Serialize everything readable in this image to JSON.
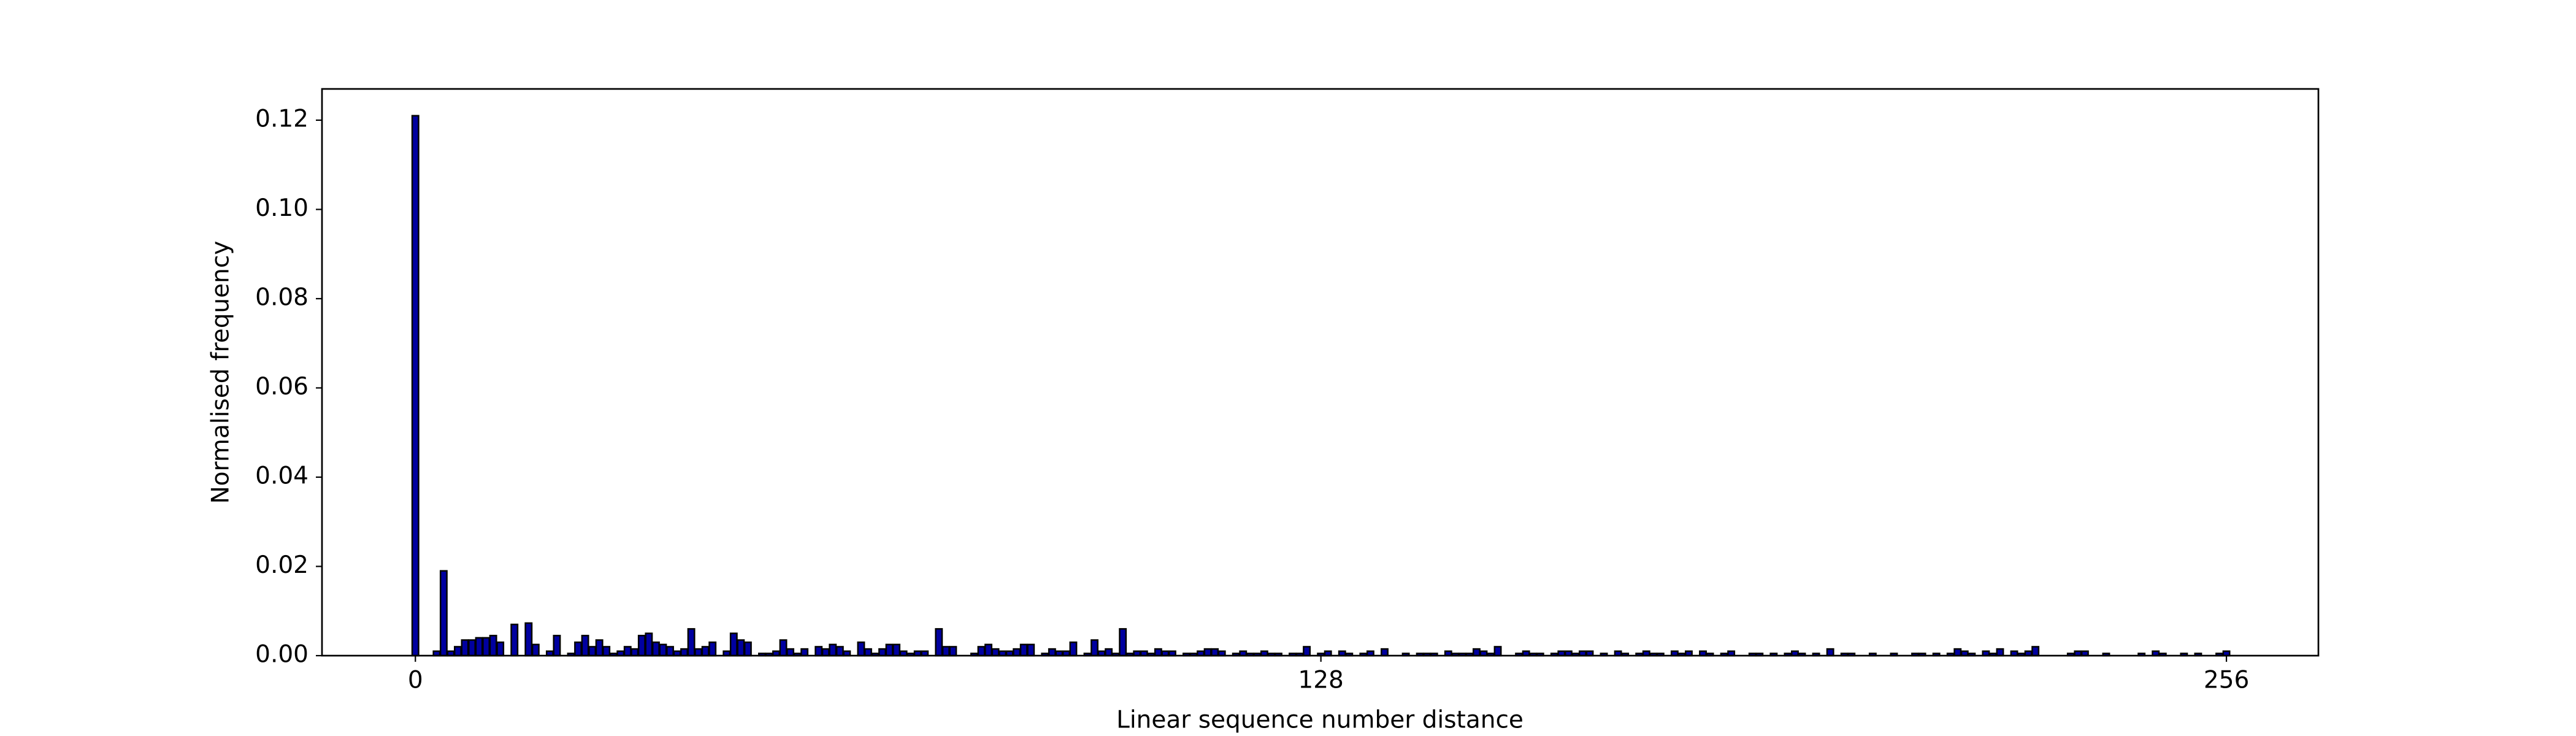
{
  "chart_data": {
    "type": "bar",
    "xlabel": "Linear sequence number distance",
    "ylabel": "Normalised frequency",
    "color": "#0000a0",
    "edgecolor": "#000000",
    "x": [
      0,
      1,
      2,
      3,
      4,
      5,
      6,
      7,
      8,
      9,
      10,
      11,
      12,
      13,
      14,
      15,
      16,
      17,
      18,
      19,
      20,
      21,
      22,
      23,
      24,
      25,
      26,
      27,
      28,
      29,
      30,
      31,
      32,
      33,
      34,
      35,
      36,
      37,
      38,
      39,
      40,
      41,
      42,
      43,
      44,
      45,
      46,
      47,
      48,
      49,
      50,
      51,
      52,
      53,
      54,
      55,
      56,
      57,
      58,
      59,
      60,
      61,
      62,
      63,
      64,
      65,
      66,
      67,
      68,
      69,
      70,
      71,
      72,
      73,
      74,
      75,
      76,
      77,
      78,
      79,
      80,
      81,
      82,
      83,
      84,
      85,
      86,
      87,
      88,
      89,
      90,
      91,
      92,
      93,
      94,
      95,
      96,
      97,
      98,
      99,
      100,
      101,
      102,
      103,
      104,
      105,
      106,
      107,
      108,
      109,
      110,
      111,
      112,
      113,
      114,
      115,
      116,
      117,
      118,
      119,
      120,
      121,
      122,
      123,
      124,
      125,
      126,
      127,
      128,
      129,
      130,
      131,
      132,
      133,
      134,
      135,
      136,
      137,
      138,
      139,
      140,
      141,
      142,
      143,
      144,
      145,
      146,
      147,
      148,
      149,
      150,
      151,
      152,
      153,
      154,
      155,
      156,
      157,
      158,
      159,
      160,
      161,
      162,
      163,
      164,
      165,
      166,
      167,
      168,
      169,
      170,
      171,
      172,
      173,
      174,
      175,
      176,
      177,
      178,
      179,
      180,
      181,
      182,
      183,
      184,
      185,
      186,
      187,
      188,
      189,
      190,
      191,
      192,
      193,
      194,
      195,
      196,
      197,
      198,
      199,
      200,
      201,
      202,
      203,
      204,
      205,
      206,
      207,
      208,
      209,
      210,
      211,
      212,
      213,
      214,
      215,
      216,
      217,
      218,
      219,
      220,
      221,
      222,
      223,
      224,
      225,
      226,
      227,
      228,
      229,
      230,
      231,
      232,
      233,
      234,
      235,
      236,
      237,
      238,
      239,
      240,
      241,
      242,
      243,
      244,
      245,
      246,
      247,
      248,
      249,
      250,
      251,
      252,
      253,
      254,
      255,
      256
    ],
    "values": [
      0.121,
      0,
      0,
      0.001,
      0.019,
      0.001,
      0.002,
      0.0035,
      0.0035,
      0.004,
      0.004,
      0.0045,
      0.003,
      0,
      0.007,
      0,
      0.0073,
      0.0025,
      0,
      0.001,
      0.0045,
      0,
      0.0005,
      0.003,
      0.0045,
      0.002,
      0.0035,
      0.002,
      0.0005,
      0.001,
      0.002,
      0.0015,
      0.0045,
      0.005,
      0.003,
      0.0025,
      0.002,
      0.001,
      0.0015,
      0.006,
      0.0015,
      0.002,
      0.003,
      0,
      0.001,
      0.005,
      0.0035,
      0.003,
      0,
      0.0005,
      0.0005,
      0.001,
      0.0035,
      0.0015,
      0.0005,
      0.0015,
      0,
      0.002,
      0.0015,
      0.0025,
      0.002,
      0.001,
      0,
      0.003,
      0.0015,
      0.0005,
      0.0015,
      0.0025,
      0.0025,
      0.001,
      0.0005,
      0.001,
      0.001,
      0,
      0.006,
      0.002,
      0.002,
      0,
      0,
      0.0005,
      0.002,
      0.0025,
      0.0015,
      0.001,
      0.001,
      0.0015,
      0.0025,
      0.0025,
      0,
      0.0005,
      0.0015,
      0.001,
      0.001,
      0.003,
      0,
      0.0005,
      0.0035,
      0.001,
      0.0015,
      0.0005,
      0.006,
      0.0005,
      0.001,
      0.001,
      0.0005,
      0.0015,
      0.001,
      0.001,
      0,
      0.0005,
      0.0005,
      0.001,
      0.0015,
      0.0015,
      0.001,
      0,
      0.0005,
      0.001,
      0.0005,
      0.0005,
      0.001,
      0.0005,
      0.0005,
      0,
      0.0005,
      0.0005,
      0.002,
      0,
      0.0005,
      0.001,
      0,
      0.001,
      0.0005,
      0,
      0.0005,
      0.001,
      0,
      0.0015,
      0,
      0,
      0.0005,
      0,
      0.0005,
      0.0005,
      0.0005,
      0,
      0.001,
      0.0005,
      0.0005,
      0.0005,
      0.0015,
      0.001,
      0.0005,
      0.002,
      0,
      0,
      0.0005,
      0.001,
      0.0005,
      0.0005,
      0,
      0.0005,
      0.001,
      0.001,
      0.0005,
      0.001,
      0.001,
      0,
      0.0005,
      0,
      0.001,
      0.0005,
      0,
      0.0005,
      0.001,
      0.0005,
      0.0005,
      0,
      0.001,
      0.0005,
      0.001,
      0,
      0.001,
      0.0005,
      0,
      0.0005,
      0.001,
      0,
      0,
      0.0005,
      0.0005,
      0,
      0.0005,
      0,
      0.0005,
      0.001,
      0.0005,
      0,
      0.0005,
      0,
      0.0015,
      0,
      0.0005,
      0.0005,
      0,
      0,
      0.0005,
      0,
      0,
      0.0005,
      0,
      0,
      0.0005,
      0.0005,
      0,
      0.0005,
      0,
      0.0005,
      0.0015,
      0.001,
      0.0005,
      0,
      0.001,
      0.0005,
      0.0015,
      0,
      0.001,
      0.0005,
      0.001,
      0.002,
      0,
      0,
      0,
      0,
      0.0005,
      0.001,
      0.001,
      0,
      0,
      0.0005,
      0,
      0,
      0,
      0,
      0.0005,
      0,
      0.001,
      0.0005,
      0,
      0,
      0.0005,
      0,
      0.0005,
      0,
      0,
      0.0005,
      0.001
    ],
    "xlim": [
      -13.2,
      269
    ],
    "ylim": [
      0,
      0.127
    ],
    "xticks": [
      0,
      128,
      256
    ],
    "yticks": [
      {
        "value": 0,
        "label": "0.00"
      },
      {
        "value": 0.02,
        "label": "0.02"
      },
      {
        "value": 0.04,
        "label": "0.04"
      },
      {
        "value": 0.06,
        "label": "0.06"
      },
      {
        "value": 0.08,
        "label": "0.08"
      },
      {
        "value": 0.1,
        "label": "0.10"
      },
      {
        "value": 0.12,
        "label": "0.12"
      }
    ]
  }
}
